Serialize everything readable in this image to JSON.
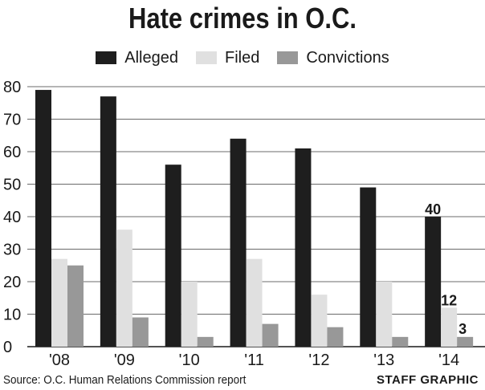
{
  "chart_data": {
    "type": "bar",
    "title": "Hate crimes in O.C.",
    "categories": [
      "'08",
      "'09",
      "'10",
      "'11",
      "'12",
      "'13",
      "'14"
    ],
    "series": [
      {
        "name": "Alleged",
        "color": "#1e1e1e",
        "values": [
          79,
          77,
          56,
          64,
          61,
          49,
          40
        ]
      },
      {
        "name": "Filed",
        "color": "#e0e0e0",
        "values": [
          27,
          36,
          20,
          27,
          16,
          20,
          12
        ]
      },
      {
        "name": "Convictions",
        "color": "#989898",
        "values": [
          25,
          9,
          3,
          7,
          6,
          3,
          3
        ]
      }
    ],
    "data_labels": [
      {
        "series": "Alleged",
        "category": "'14",
        "text": "40"
      },
      {
        "series": "Filed",
        "category": "'14",
        "text": "12"
      },
      {
        "series": "Convictions",
        "category": "'14",
        "text": "3"
      }
    ],
    "y_ticks": [
      0,
      10,
      20,
      30,
      40,
      50,
      60,
      70,
      80
    ],
    "ylim": [
      0,
      80
    ],
    "grid": true,
    "legend_position": "top-center"
  },
  "footer": {
    "source": "Source: O.C. Human Relations Commission report",
    "credit": "STAFF GRAPHIC"
  }
}
